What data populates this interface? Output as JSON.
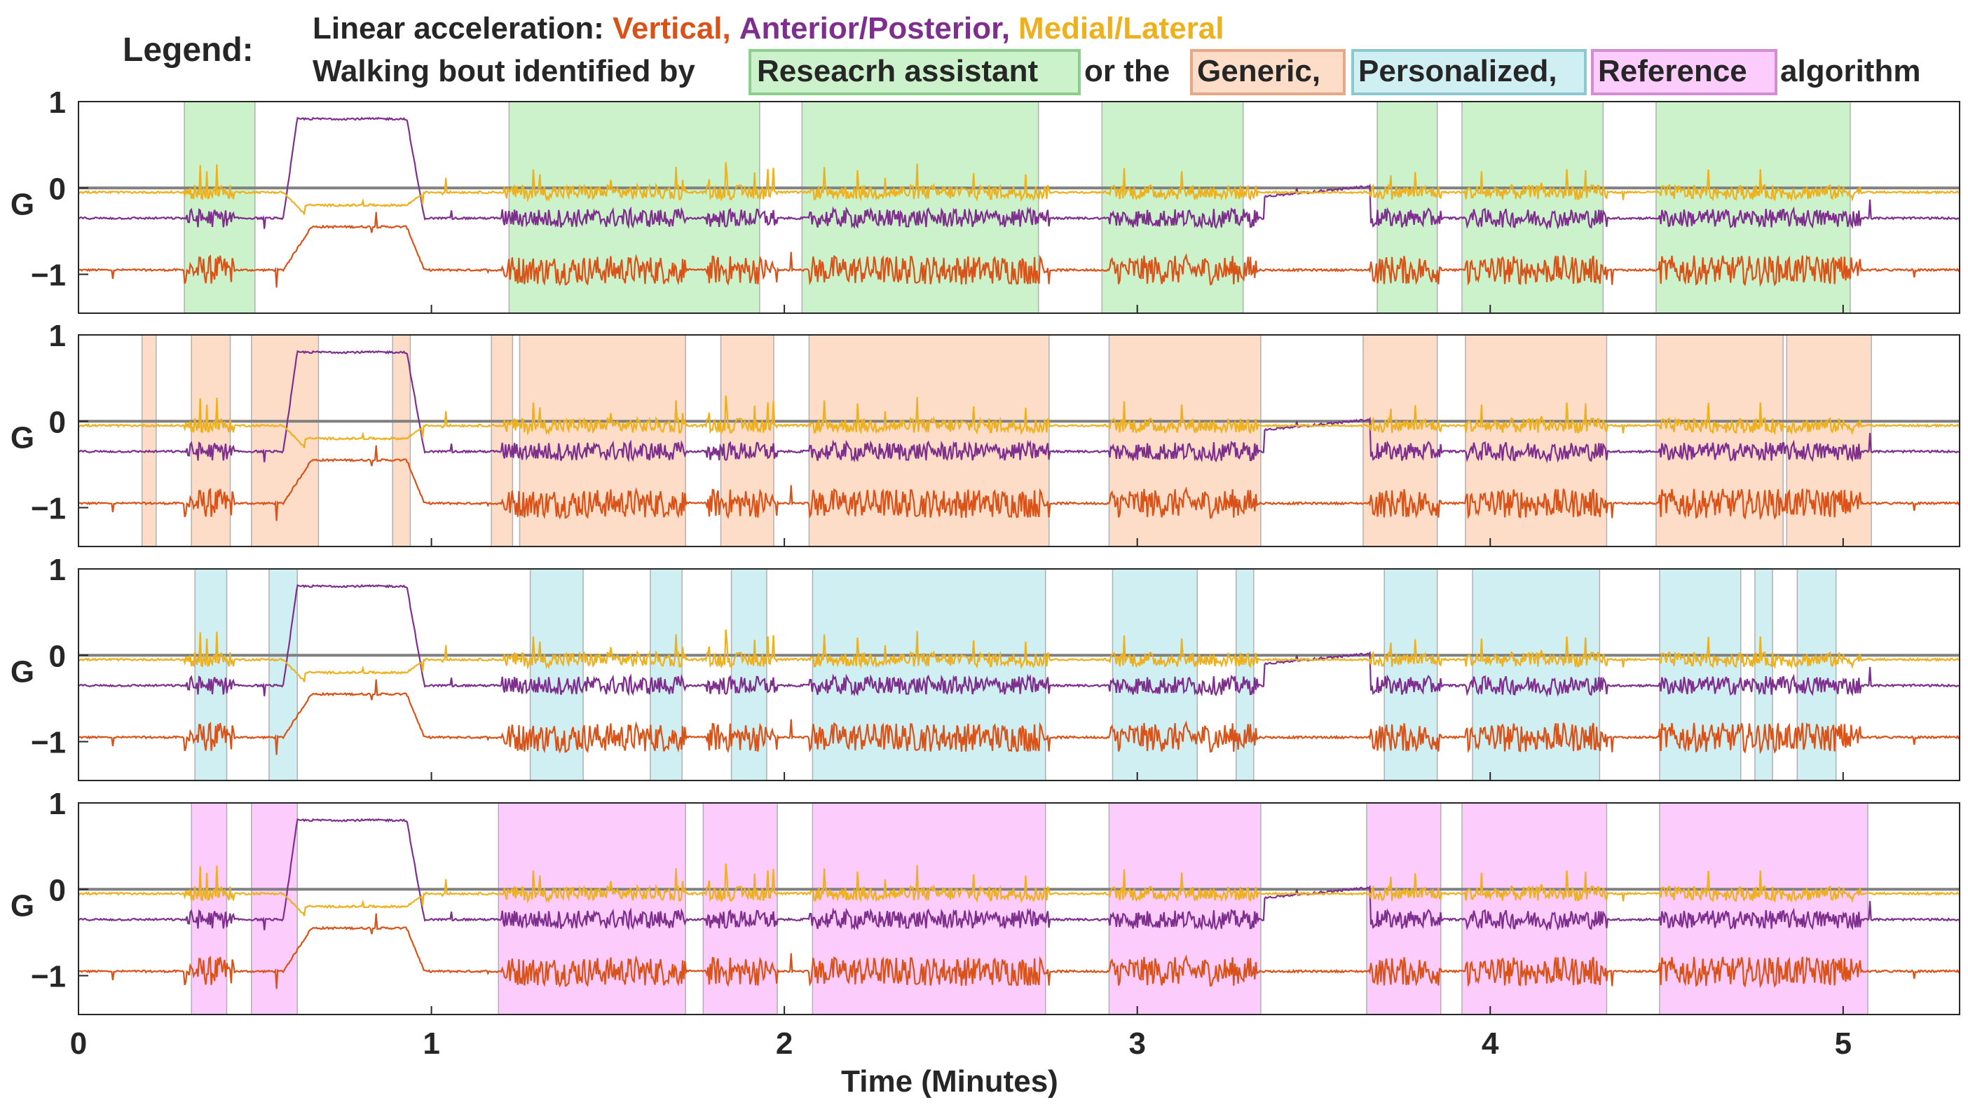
{
  "chart_data": {
    "type": "line",
    "legend": {
      "title": "Legend:",
      "line1_prefix": "Linear acceleration: ",
      "series_labels": [
        "Vertical,",
        "Anterior/Posterior,",
        "Medial/Lateral"
      ],
      "line2_prefix": "Walking bout identified by",
      "sources": [
        "Reseacrh assistant",
        "Generic,",
        "Personalized,",
        "Reference"
      ],
      "connector": "or the",
      "line2_suffix": "algorithm"
    },
    "xlabel": "Time (Minutes)",
    "xlim": [
      0,
      5.33
    ],
    "xticks": [
      0,
      1,
      2,
      3,
      4,
      5
    ],
    "xtick_labels": [
      "0",
      "1",
      "2",
      "3",
      "4",
      "5"
    ],
    "ylabel": "G",
    "ylim": [
      -1.45,
      1.0
    ],
    "yticks": [
      -1,
      0,
      1
    ],
    "ytick_labels": [
      "−1",
      "0",
      "1"
    ],
    "zero_line": 0,
    "series": [
      {
        "name": "Vertical",
        "color": "#D95319",
        "baseline": -0.95
      },
      {
        "name": "Anterior/Posterior",
        "color": "#7E2F8E",
        "baseline": -0.35
      },
      {
        "name": "Medial/Lateral",
        "color": "#EDB120",
        "baseline": -0.05
      }
    ],
    "panels": [
      {
        "source": "Reseacrh assistant",
        "fill": "#CCF2CC",
        "edge": "#8CCF8C",
        "bouts": [
          [
            0.3,
            0.5
          ],
          [
            1.22,
            1.93
          ],
          [
            2.05,
            2.72
          ],
          [
            2.9,
            3.3
          ],
          [
            3.68,
            3.85
          ],
          [
            3.92,
            4.32
          ],
          [
            4.47,
            5.02
          ]
        ]
      },
      {
        "source": "Generic",
        "fill": "#FDDCC8",
        "edge": "#E8A888",
        "bouts": [
          [
            0.18,
            0.22
          ],
          [
            0.32,
            0.43
          ],
          [
            0.49,
            0.68
          ],
          [
            0.89,
            0.94
          ],
          [
            1.17,
            1.23
          ],
          [
            1.25,
            1.72
          ],
          [
            1.82,
            1.97
          ],
          [
            2.07,
            2.75
          ],
          [
            2.92,
            3.35
          ],
          [
            3.64,
            3.85
          ],
          [
            3.93,
            4.33
          ],
          [
            4.47,
            4.83
          ],
          [
            4.84,
            5.08
          ]
        ]
      },
      {
        "source": "Personalized",
        "fill": "#CFEFF2",
        "edge": "#8CC8CF",
        "bouts": [
          [
            0.33,
            0.42
          ],
          [
            0.54,
            0.62
          ],
          [
            1.28,
            1.43
          ],
          [
            1.62,
            1.71
          ],
          [
            1.85,
            1.95
          ],
          [
            2.08,
            2.74
          ],
          [
            2.93,
            3.17
          ],
          [
            3.28,
            3.33
          ],
          [
            3.7,
            3.85
          ],
          [
            3.95,
            4.31
          ],
          [
            4.48,
            4.71
          ],
          [
            4.75,
            4.8
          ],
          [
            4.87,
            4.98
          ]
        ]
      },
      {
        "source": "Reference",
        "fill": "#FCCCFC",
        "edge": "#D48CD4",
        "bouts": [
          [
            0.32,
            0.42
          ],
          [
            0.49,
            0.62
          ],
          [
            1.19,
            1.72
          ],
          [
            1.77,
            1.98
          ],
          [
            2.08,
            2.74
          ],
          [
            2.92,
            3.35
          ],
          [
            3.65,
            3.86
          ],
          [
            3.92,
            4.33
          ],
          [
            4.48,
            5.07
          ]
        ]
      }
    ]
  }
}
